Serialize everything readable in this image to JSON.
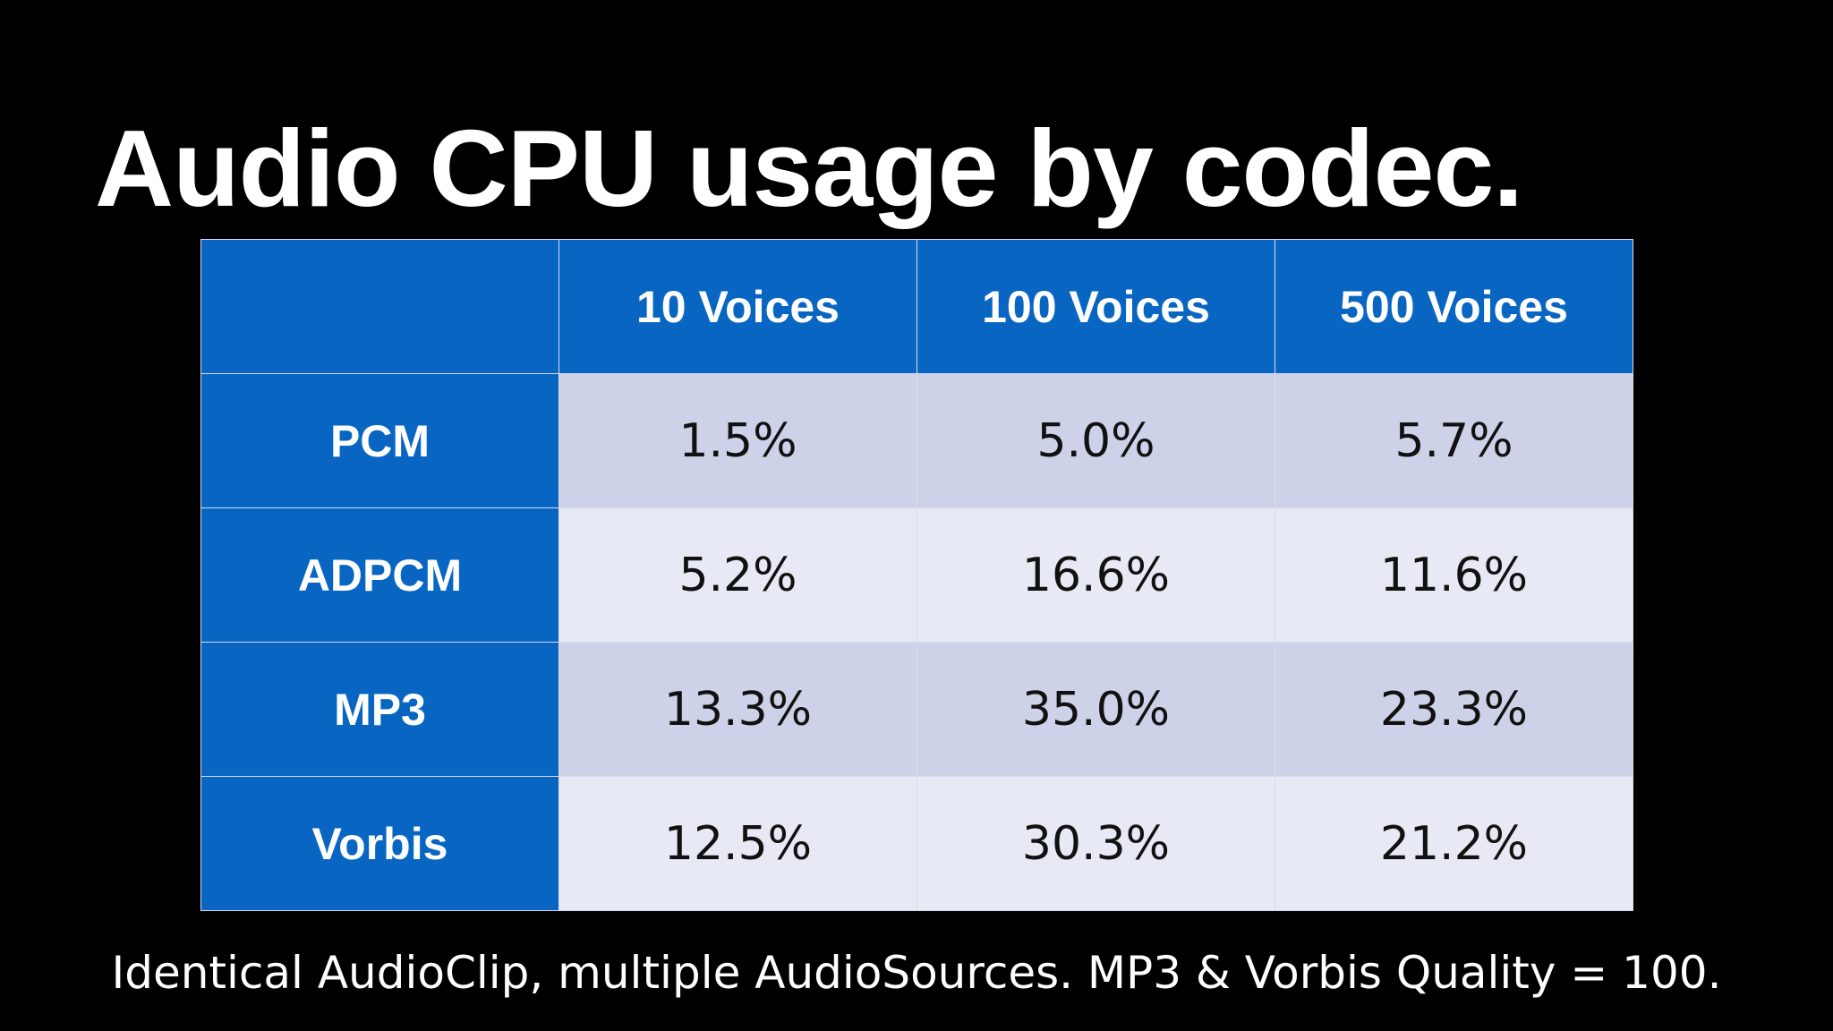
{
  "slide": {
    "title": "Audio CPU usage by codec.",
    "footnote": "Identical AudioClip, multiple AudioSources. MP3 & Vorbis Quality = 100."
  },
  "table": {
    "corner": "",
    "columns": [
      "10 Voices",
      "100 Voices",
      "500 Voices"
    ],
    "rows": [
      {
        "label": "PCM",
        "values": [
          "1.5%",
          "5.0%",
          "5.7%"
        ]
      },
      {
        "label": "ADPCM",
        "values": [
          "5.2%",
          "16.6%",
          "11.6%"
        ]
      },
      {
        "label": "MP3",
        "values": [
          "13.3%",
          "35.0%",
          "23.3%"
        ]
      },
      {
        "label": "Vorbis",
        "values": [
          "12.5%",
          "30.3%",
          "21.2%"
        ]
      }
    ]
  },
  "colors": {
    "background": "#000000",
    "header_blue": "#0866c2",
    "row_light": "#e7e9f4",
    "row_shaded": "#cdd2e9"
  }
}
